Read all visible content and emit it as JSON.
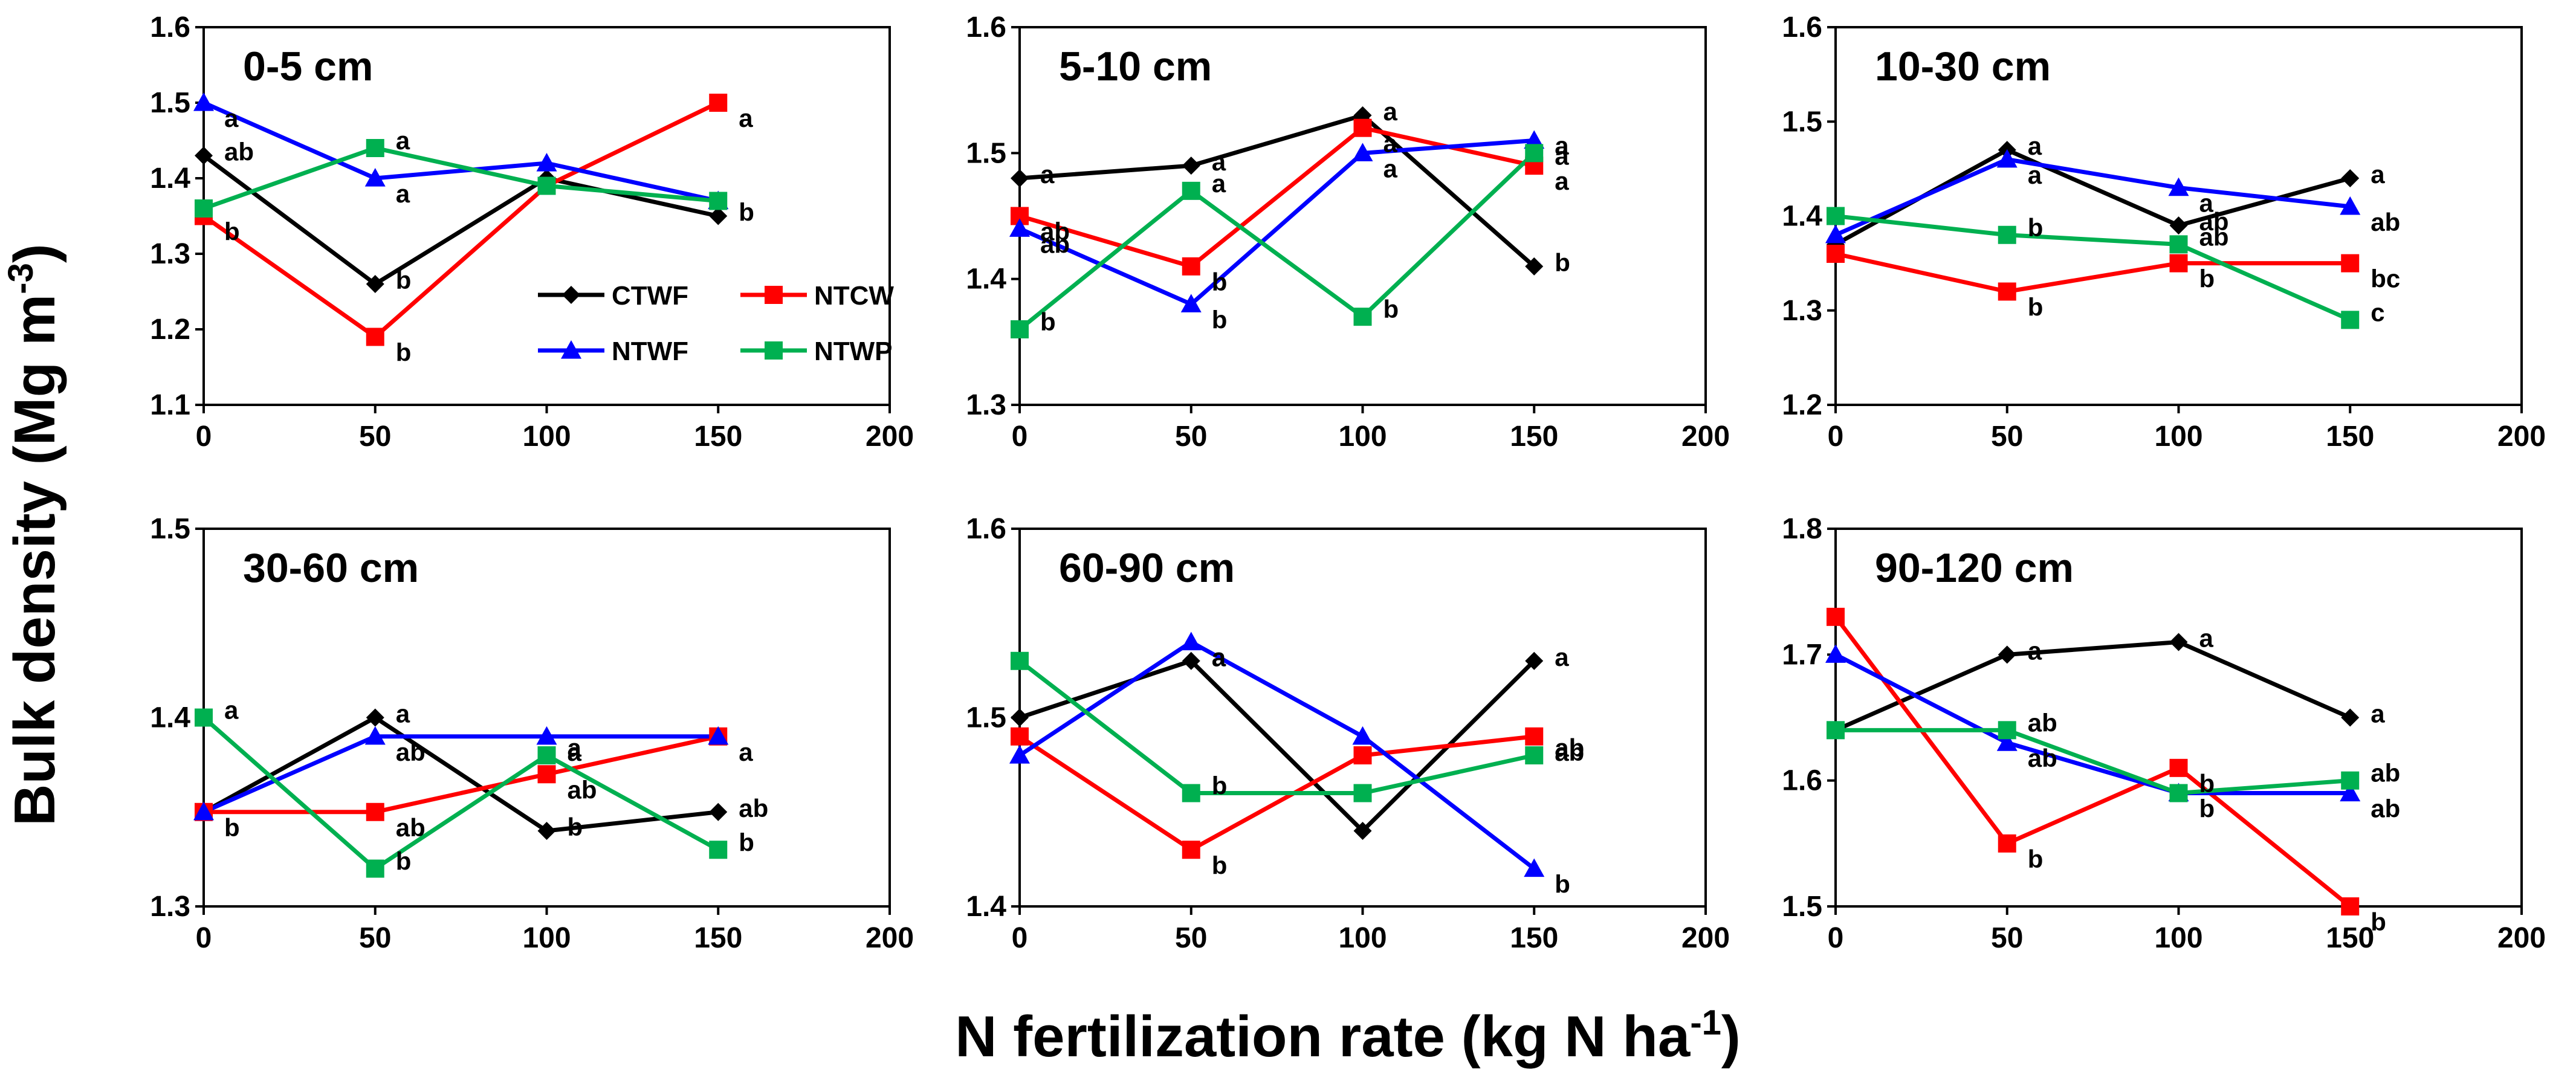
{
  "chart_data": [
    {
      "type": "line",
      "title": "0-5 cm",
      "x": [
        0,
        50,
        100,
        150
      ],
      "xlim": [
        0,
        200
      ],
      "xticks": [
        0,
        50,
        100,
        150,
        200
      ],
      "ylim": [
        1.1,
        1.6
      ],
      "yticks": [
        1.1,
        1.2,
        1.3,
        1.4,
        1.5,
        1.6
      ],
      "series": [
        {
          "name": "CTWF",
          "values": [
            1.43,
            1.26,
            1.4,
            1.35
          ],
          "labels": [
            "ab",
            "b",
            "",
            "b"
          ]
        },
        {
          "name": "NTCW",
          "values": [
            1.35,
            1.19,
            1.39,
            1.5
          ],
          "labels": [
            "b",
            "b",
            "",
            "a"
          ]
        },
        {
          "name": "NTWF",
          "values": [
            1.5,
            1.4,
            1.42,
            1.37
          ],
          "labels": [
            "a",
            "a",
            "",
            ""
          ]
        },
        {
          "name": "NTWP",
          "values": [
            1.36,
            1.44,
            1.39,
            1.37
          ],
          "labels": [
            "",
            "a",
            "",
            ""
          ]
        }
      ]
    },
    {
      "type": "line",
      "title": "5-10 cm",
      "x": [
        0,
        50,
        100,
        150
      ],
      "xlim": [
        0,
        200
      ],
      "xticks": [
        0,
        50,
        100,
        150,
        200
      ],
      "ylim": [
        1.3,
        1.6
      ],
      "yticks": [
        1.3,
        1.4,
        1.5,
        1.6
      ],
      "series": [
        {
          "name": "CTWF",
          "values": [
            1.48,
            1.49,
            1.53,
            1.41
          ],
          "labels": [
            "a",
            "a",
            "a",
            "b"
          ]
        },
        {
          "name": "NTCW",
          "values": [
            1.45,
            1.41,
            1.52,
            1.49
          ],
          "labels": [
            "ab",
            "b",
            "a",
            "a"
          ]
        },
        {
          "name": "NTWF",
          "values": [
            1.44,
            1.38,
            1.5,
            1.51
          ],
          "labels": [
            "ab",
            "b",
            "a",
            "a"
          ]
        },
        {
          "name": "NTWP",
          "values": [
            1.36,
            1.47,
            1.37,
            1.5
          ],
          "labels": [
            "b",
            "a",
            "b",
            "a"
          ]
        }
      ]
    },
    {
      "type": "line",
      "title": "10-30 cm",
      "x": [
        0,
        50,
        100,
        150
      ],
      "xlim": [
        0,
        200
      ],
      "xticks": [
        0,
        50,
        100,
        150,
        200
      ],
      "ylim": [
        1.2,
        1.6
      ],
      "yticks": [
        1.2,
        1.3,
        1.4,
        1.5,
        1.6
      ],
      "series": [
        {
          "name": "CTWF",
          "values": [
            1.37,
            1.47,
            1.39,
            1.44
          ],
          "labels": [
            "",
            "a",
            "ab",
            "a"
          ]
        },
        {
          "name": "NTCW",
          "values": [
            1.36,
            1.32,
            1.35,
            1.35
          ],
          "labels": [
            "",
            "b",
            "b",
            "bc"
          ]
        },
        {
          "name": "NTWF",
          "values": [
            1.38,
            1.46,
            1.43,
            1.41
          ],
          "labels": [
            "",
            "a",
            "a",
            "ab"
          ]
        },
        {
          "name": "NTWP",
          "values": [
            1.4,
            1.38,
            1.37,
            1.29
          ],
          "labels": [
            "",
            "b",
            "ab",
            "c"
          ]
        }
      ]
    },
    {
      "type": "line",
      "title": "30-60 cm",
      "x": [
        0,
        50,
        100,
        150
      ],
      "xlim": [
        0,
        200
      ],
      "xticks": [
        0,
        50,
        100,
        150,
        200
      ],
      "ylim": [
        1.3,
        1.5
      ],
      "yticks": [
        1.3,
        1.4,
        1.5
      ],
      "series": [
        {
          "name": "CTWF",
          "values": [
            1.35,
            1.4,
            1.34,
            1.35
          ],
          "labels": [
            "",
            "a",
            "b",
            "ab"
          ]
        },
        {
          "name": "NTCW",
          "values": [
            1.35,
            1.35,
            1.37,
            1.39
          ],
          "labels": [
            "b",
            "ab",
            "ab",
            "a"
          ]
        },
        {
          "name": "NTWF",
          "values": [
            1.35,
            1.39,
            1.39,
            1.39
          ],
          "labels": [
            "",
            "ab",
            "a",
            ""
          ]
        },
        {
          "name": "NTWP",
          "values": [
            1.4,
            1.32,
            1.38,
            1.33
          ],
          "labels": [
            "a",
            "b",
            "a",
            "b"
          ]
        }
      ]
    },
    {
      "type": "line",
      "title": "60-90 cm",
      "x": [
        0,
        50,
        100,
        150
      ],
      "xlim": [
        0,
        200
      ],
      "xticks": [
        0,
        50,
        100,
        150,
        200
      ],
      "ylim": [
        1.4,
        1.6
      ],
      "yticks": [
        1.4,
        1.5,
        1.6
      ],
      "series": [
        {
          "name": "CTWF",
          "values": [
            1.5,
            1.53,
            1.44,
            1.53
          ],
          "labels": [
            "",
            "a",
            "",
            "a"
          ]
        },
        {
          "name": "NTCW",
          "values": [
            1.49,
            1.43,
            1.48,
            1.49
          ],
          "labels": [
            "",
            "b",
            "",
            "ab"
          ]
        },
        {
          "name": "NTWF",
          "values": [
            1.48,
            1.54,
            1.49,
            1.42
          ],
          "labels": [
            "",
            "a",
            "",
            "b"
          ]
        },
        {
          "name": "NTWP",
          "values": [
            1.53,
            1.46,
            1.46,
            1.48
          ],
          "labels": [
            "",
            "b",
            "",
            "ab"
          ]
        }
      ]
    },
    {
      "type": "line",
      "title": "90-120 cm",
      "x": [
        0,
        50,
        100,
        150
      ],
      "xlim": [
        0,
        200
      ],
      "xticks": [
        0,
        50,
        100,
        150,
        200
      ],
      "ylim": [
        1.5,
        1.8
      ],
      "yticks": [
        1.5,
        1.6,
        1.7,
        1.8
      ],
      "series": [
        {
          "name": "CTWF",
          "values": [
            1.64,
            1.7,
            1.71,
            1.65
          ],
          "labels": [
            "",
            "a",
            "a",
            "a"
          ]
        },
        {
          "name": "NTCW",
          "values": [
            1.73,
            1.55,
            1.61,
            1.5
          ],
          "labels": [
            "",
            "b",
            "b",
            "b"
          ]
        },
        {
          "name": "NTWF",
          "values": [
            1.7,
            1.63,
            1.59,
            1.59
          ],
          "labels": [
            "",
            "ab",
            "b",
            "ab"
          ]
        },
        {
          "name": "NTWP",
          "values": [
            1.64,
            1.64,
            1.59,
            1.6
          ],
          "labels": [
            "",
            "ab",
            "",
            "ab"
          ]
        }
      ]
    }
  ],
  "legend": [
    {
      "name": "CTWF",
      "color": "#000000",
      "marker": "diamond"
    },
    {
      "name": "NTCW",
      "color": "#ff0000",
      "marker": "square"
    },
    {
      "name": "NTWF",
      "color": "#0000ff",
      "marker": "triangle"
    },
    {
      "name": "NTWP",
      "color": "#00b050",
      "marker": "square"
    }
  ],
  "ylabel": {
    "main": "Bulk density (Mg m",
    "sup": "-3",
    "end": ")"
  },
  "xlabel": {
    "main": "N fertilization rate (kg N ha",
    "sup": "-1",
    "end": ")"
  }
}
